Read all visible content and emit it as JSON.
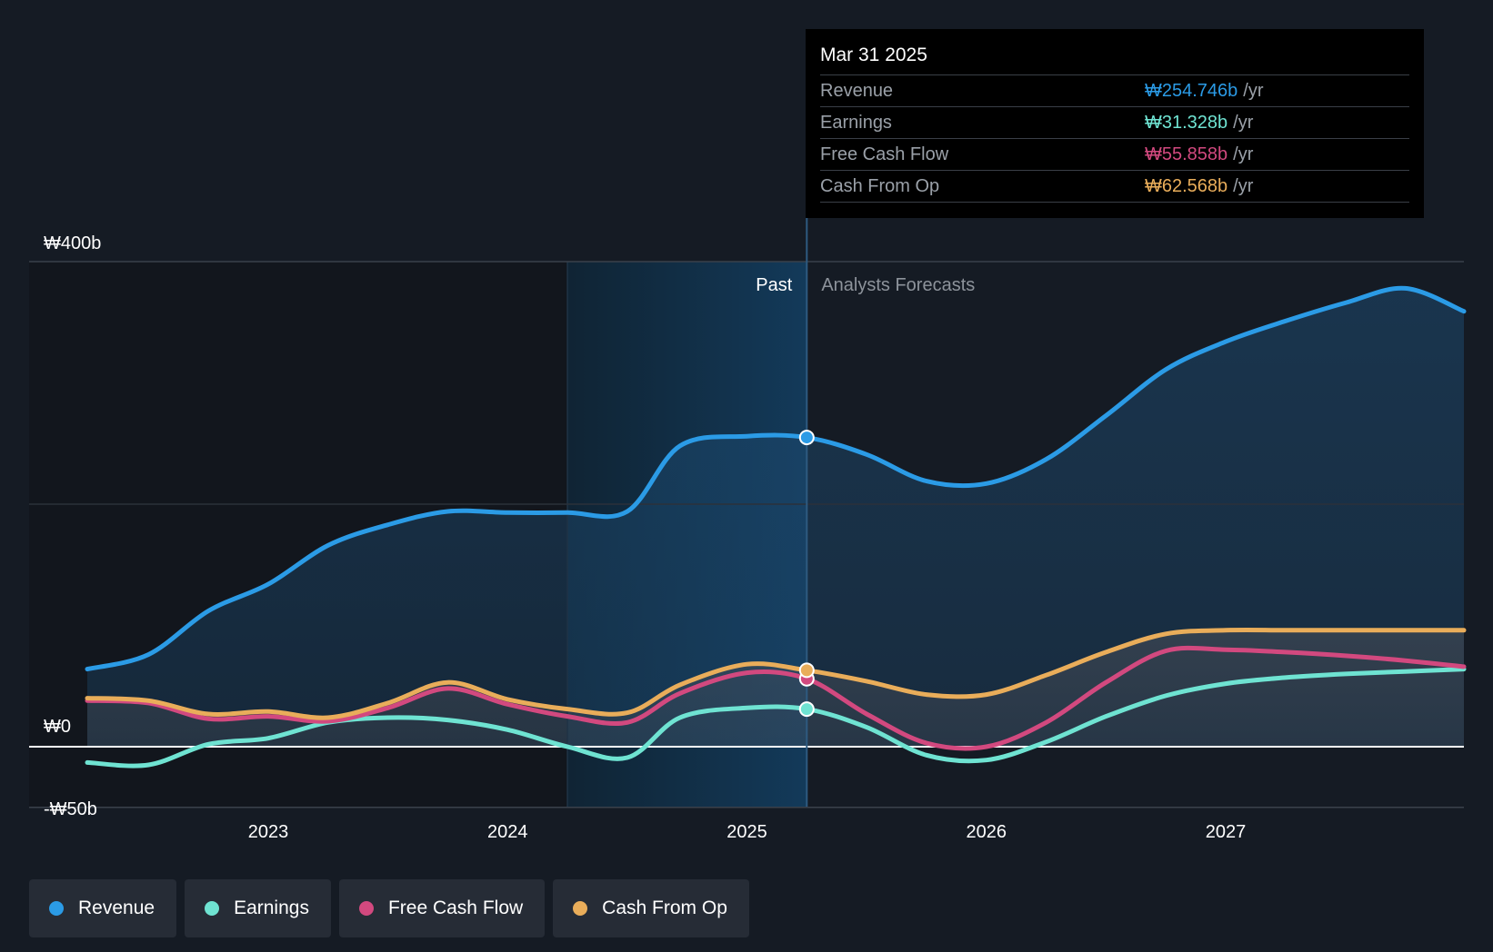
{
  "colors": {
    "revenue": "#2b9be6",
    "earnings": "#6fe3d2",
    "fcf": "#d2497f",
    "cfo": "#e9ad5a",
    "background": "#151b24"
  },
  "tooltip": {
    "date": "Mar 31 2025",
    "rows": [
      {
        "label": "Revenue",
        "value": "₩254.746b",
        "unit": "/yr",
        "color": "#2b9be6"
      },
      {
        "label": "Earnings",
        "value": "₩31.328b",
        "unit": "/yr",
        "color": "#6fe3d2"
      },
      {
        "label": "Free Cash Flow",
        "value": "₩55.858b",
        "unit": "/yr",
        "color": "#d2497f"
      },
      {
        "label": "Cash From Op",
        "value": "₩62.568b",
        "unit": "/yr",
        "color": "#e9ad5a"
      }
    ]
  },
  "sections": {
    "past": "Past",
    "forecast": "Analysts Forecasts"
  },
  "legend": [
    {
      "label": "Revenue",
      "color": "#2b9be6"
    },
    {
      "label": "Earnings",
      "color": "#6fe3d2"
    },
    {
      "label": "Free Cash Flow",
      "color": "#d2497f"
    },
    {
      "label": "Cash From Op",
      "color": "#e9ad5a"
    }
  ],
  "chart_data": {
    "type": "line",
    "title": "",
    "xlabel": "",
    "ylabel": "",
    "x_ticks": [
      "2023",
      "2024",
      "2025",
      "2026",
      "2027"
    ],
    "x_tick_values": [
      2023,
      2024,
      2025,
      2026,
      2027
    ],
    "y_tick_labels": [
      "₩400b",
      "₩0",
      "-₩50b"
    ],
    "y_tick_values": [
      400,
      0,
      -50
    ],
    "xlim": [
      2022.0,
      2028.0
    ],
    "ylim": [
      -50,
      400
    ],
    "past_region": [
      2024.25,
      2025.25
    ],
    "current_date": 2025.25,
    "series": [
      {
        "name": "Revenue",
        "color": "#2b9be6",
        "points": [
          [
            2022.25,
            64
          ],
          [
            2022.5,
            76
          ],
          [
            2022.75,
            112
          ],
          [
            2023.0,
            134
          ],
          [
            2023.25,
            166
          ],
          [
            2023.5,
            183
          ],
          [
            2023.75,
            194
          ],
          [
            2024.0,
            193
          ],
          [
            2024.25,
            193
          ],
          [
            2024.5,
            194
          ],
          [
            2024.72,
            248
          ],
          [
            2025.0,
            256
          ],
          [
            2025.25,
            255
          ],
          [
            2025.5,
            241
          ],
          [
            2025.75,
            219
          ],
          [
            2026.0,
            217
          ],
          [
            2026.25,
            237
          ],
          [
            2026.5,
            273
          ],
          [
            2026.75,
            311
          ],
          [
            2027.0,
            334
          ],
          [
            2027.25,
            351
          ],
          [
            2027.5,
            366
          ],
          [
            2027.75,
            378
          ],
          [
            2028.0,
            359
          ]
        ]
      },
      {
        "name": "Earnings",
        "color": "#6fe3d2",
        "points": [
          [
            2022.25,
            -13
          ],
          [
            2022.5,
            -15
          ],
          [
            2022.75,
            2
          ],
          [
            2023.0,
            7
          ],
          [
            2023.25,
            20
          ],
          [
            2023.5,
            24
          ],
          [
            2023.75,
            22
          ],
          [
            2024.0,
            14
          ],
          [
            2024.25,
            0
          ],
          [
            2024.5,
            -9
          ],
          [
            2024.72,
            24
          ],
          [
            2025.0,
            32
          ],
          [
            2025.25,
            31
          ],
          [
            2025.5,
            16
          ],
          [
            2025.75,
            -7
          ],
          [
            2026.0,
            -11
          ],
          [
            2026.25,
            4
          ],
          [
            2026.5,
            25
          ],
          [
            2026.75,
            42
          ],
          [
            2027.0,
            52
          ],
          [
            2027.25,
            57
          ],
          [
            2027.5,
            60
          ],
          [
            2027.75,
            62
          ],
          [
            2028.0,
            64
          ]
        ]
      },
      {
        "name": "Free Cash Flow",
        "color": "#d2497f",
        "points": [
          [
            2022.25,
            38
          ],
          [
            2022.5,
            36
          ],
          [
            2022.75,
            23
          ],
          [
            2023.0,
            25
          ],
          [
            2023.25,
            21
          ],
          [
            2023.5,
            32
          ],
          [
            2023.75,
            48
          ],
          [
            2024.0,
            35
          ],
          [
            2024.25,
            25
          ],
          [
            2024.5,
            20
          ],
          [
            2024.72,
            44
          ],
          [
            2025.0,
            61
          ],
          [
            2025.25,
            56
          ],
          [
            2025.5,
            27
          ],
          [
            2025.75,
            3
          ],
          [
            2026.0,
            0
          ],
          [
            2026.25,
            20
          ],
          [
            2026.5,
            53
          ],
          [
            2026.75,
            79
          ],
          [
            2027.0,
            80
          ],
          [
            2027.25,
            78
          ],
          [
            2027.5,
            75
          ],
          [
            2027.75,
            71
          ],
          [
            2028.0,
            66
          ]
        ]
      },
      {
        "name": "Cash From Op",
        "color": "#e9ad5a",
        "points": [
          [
            2022.25,
            40
          ],
          [
            2022.5,
            38
          ],
          [
            2022.75,
            27
          ],
          [
            2023.0,
            29
          ],
          [
            2023.25,
            24
          ],
          [
            2023.5,
            36
          ],
          [
            2023.75,
            53
          ],
          [
            2024.0,
            39
          ],
          [
            2024.25,
            31
          ],
          [
            2024.5,
            28
          ],
          [
            2024.72,
            51
          ],
          [
            2025.0,
            68
          ],
          [
            2025.25,
            63
          ],
          [
            2025.5,
            54
          ],
          [
            2025.75,
            43
          ],
          [
            2026.0,
            43
          ],
          [
            2026.25,
            59
          ],
          [
            2026.5,
            78
          ],
          [
            2026.75,
            93
          ],
          [
            2027.0,
            96
          ],
          [
            2027.25,
            96
          ],
          [
            2027.5,
            96
          ],
          [
            2027.75,
            96
          ],
          [
            2028.0,
            96
          ]
        ]
      }
    ]
  }
}
